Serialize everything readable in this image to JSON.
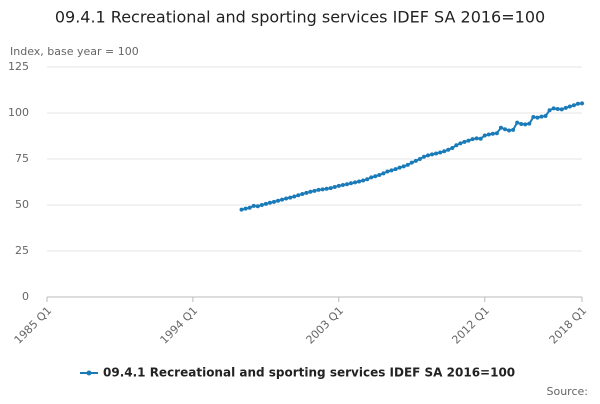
{
  "chart_data": {
    "type": "line",
    "title": "09.4.1 Recreational and sporting services IDEF SA 2016=100",
    "y_label": "Index, base year = 100",
    "source": "Source:",
    "x": [
      1997,
      1997.25,
      1997.5,
      1997.75,
      1998,
      1998.25,
      1998.5,
      1998.75,
      1999,
      1999.25,
      1999.5,
      1999.75,
      2000,
      2000.25,
      2000.5,
      2000.75,
      2001,
      2001.25,
      2001.5,
      2001.75,
      2002,
      2002.25,
      2002.5,
      2002.75,
      2003,
      2003.25,
      2003.5,
      2003.75,
      2004,
      2004.25,
      2004.5,
      2004.75,
      2005,
      2005.25,
      2005.5,
      2005.75,
      2006,
      2006.25,
      2006.5,
      2006.75,
      2007,
      2007.25,
      2007.5,
      2007.75,
      2008,
      2008.25,
      2008.5,
      2008.75,
      2009,
      2009.25,
      2009.5,
      2009.75,
      2010,
      2010.25,
      2010.5,
      2010.75,
      2011,
      2011.25,
      2011.5,
      2011.75,
      2012,
      2012.25,
      2012.5,
      2012.75,
      2013,
      2013.25,
      2013.5,
      2013.75,
      2014,
      2014.25,
      2014.5,
      2014.75,
      2015,
      2015.25,
      2015.5,
      2015.75,
      2016,
      2016.25,
      2016.5,
      2016.75,
      2017,
      2017.25,
      2017.5,
      2017.75,
      2018
    ],
    "series": [
      {
        "name": "09.4.1 Recreational and sporting services IDEF SA 2016=100",
        "color": "#1b7bb9",
        "values": [
          47.5,
          48.0,
          48.5,
          49.5,
          49.3,
          50.0,
          50.6,
          51.2,
          51.7,
          52.3,
          52.9,
          53.5,
          54.0,
          54.6,
          55.3,
          56.0,
          56.6,
          57.2,
          57.7,
          58.2,
          58.5,
          58.8,
          59.2,
          59.8,
          60.4,
          60.9,
          61.3,
          61.8,
          62.3,
          62.8,
          63.3,
          64.0,
          65.0,
          65.6,
          66.3,
          67.2,
          68.2,
          68.8,
          69.5,
          70.3,
          71.0,
          71.8,
          73.0,
          74.0,
          75.0,
          76.2,
          77.0,
          77.5,
          78.0,
          78.5,
          79.2,
          80.0,
          81.0,
          82.5,
          83.5,
          84.3,
          85.0,
          85.8,
          86.2,
          86.0,
          87.8,
          88.3,
          88.7,
          89.0,
          92.0,
          91.2,
          90.5,
          90.8,
          94.8,
          94.0,
          93.8,
          94.2,
          97.8,
          97.5,
          98.0,
          98.4,
          101.5,
          102.5,
          102.2,
          102.0,
          102.8,
          103.5,
          104.2,
          105.0,
          105.2
        ]
      }
    ],
    "xlim": [
      1985,
      2018
    ],
    "xticks": [
      {
        "value": 1985,
        "label": "1985 Q1"
      },
      {
        "value": 1994,
        "label": "1994 Q1"
      },
      {
        "value": 2003,
        "label": "2003 Q1"
      },
      {
        "value": 2012,
        "label": "2012 Q1"
      },
      {
        "value": 2018,
        "label": "2018 Q1"
      }
    ],
    "ylim": [
      0,
      125
    ],
    "yticks": [
      0,
      25,
      50,
      75,
      100,
      125
    ],
    "grid": true
  }
}
